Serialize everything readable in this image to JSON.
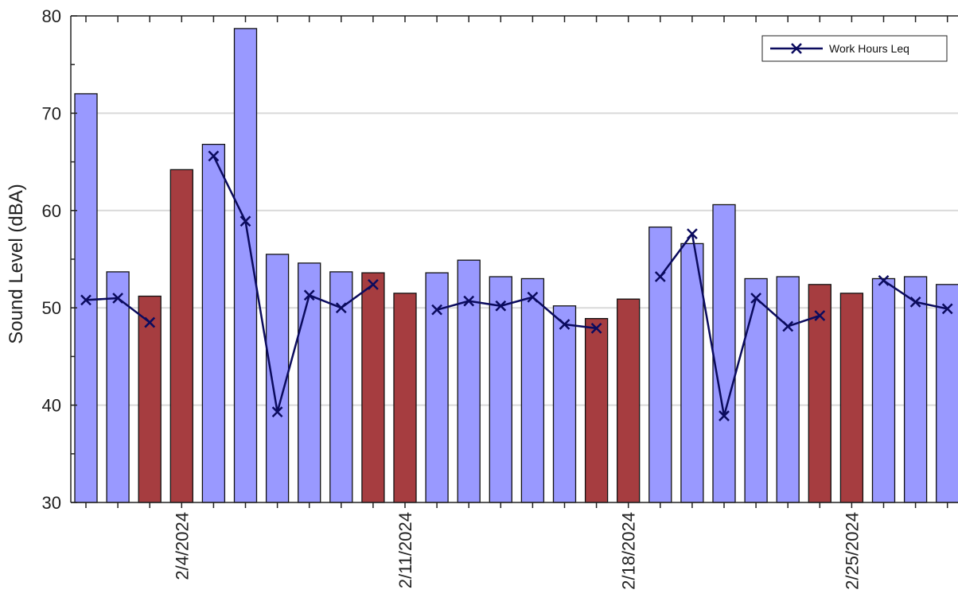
{
  "chart_data": {
    "type": "bar",
    "title": "",
    "xlabel": "",
    "ylabel": "Sound Level (dBA)",
    "ylim": [
      30,
      80
    ],
    "yticks": [
      30,
      40,
      50,
      60,
      70,
      80
    ],
    "xtick_labels": [
      {
        "index": 3,
        "label": "2/4/2024"
      },
      {
        "index": 10,
        "label": "2/11/2024"
      },
      {
        "index": 17,
        "label": "2/18/2024"
      },
      {
        "index": 24,
        "label": "2/25/2024"
      }
    ],
    "dates": [
      "2/1/2024",
      "2/2/2024",
      "2/3/2024",
      "2/4/2024",
      "2/5/2024",
      "2/6/2024",
      "2/7/2024",
      "2/8/2024",
      "2/9/2024",
      "2/10/2024",
      "2/11/2024",
      "2/12/2024",
      "2/13/2024",
      "2/14/2024",
      "2/15/2024",
      "2/16/2024",
      "2/17/2024",
      "2/18/2024",
      "2/19/2024",
      "2/20/2024",
      "2/21/2024",
      "2/22/2024",
      "2/23/2024",
      "2/24/2024",
      "2/25/2024",
      "2/26/2024",
      "2/27/2024",
      "2/28/2024"
    ],
    "bars": {
      "values": [
        72.0,
        53.7,
        51.2,
        64.2,
        66.8,
        78.7,
        55.5,
        54.6,
        53.7,
        53.6,
        51.5,
        53.6,
        54.9,
        53.2,
        53.0,
        50.2,
        48.9,
        50.9,
        58.3,
        56.6,
        60.6,
        53.0,
        53.2,
        52.4,
        51.5,
        53.0,
        53.2,
        52.4
      ],
      "weekend": [
        false,
        false,
        true,
        true,
        false,
        false,
        false,
        false,
        false,
        true,
        true,
        false,
        false,
        false,
        false,
        false,
        true,
        true,
        false,
        false,
        false,
        false,
        false,
        true,
        true,
        false,
        false,
        false
      ],
      "weekday_color": "#9999ff",
      "weekend_color": "#a63d40"
    },
    "series": [
      {
        "name": "Work Hours Leq",
        "color": "#0b0b5e",
        "values": [
          50.8,
          51.0,
          48.5,
          null,
          65.6,
          58.9,
          39.3,
          51.3,
          50.0,
          52.4,
          null,
          49.8,
          50.7,
          50.2,
          51.1,
          48.3,
          47.9,
          null,
          53.2,
          57.6,
          38.9,
          51.0,
          48.1,
          49.2,
          null,
          52.8,
          50.6,
          49.9
        ]
      }
    ],
    "grid": true,
    "legend": "top-right"
  }
}
